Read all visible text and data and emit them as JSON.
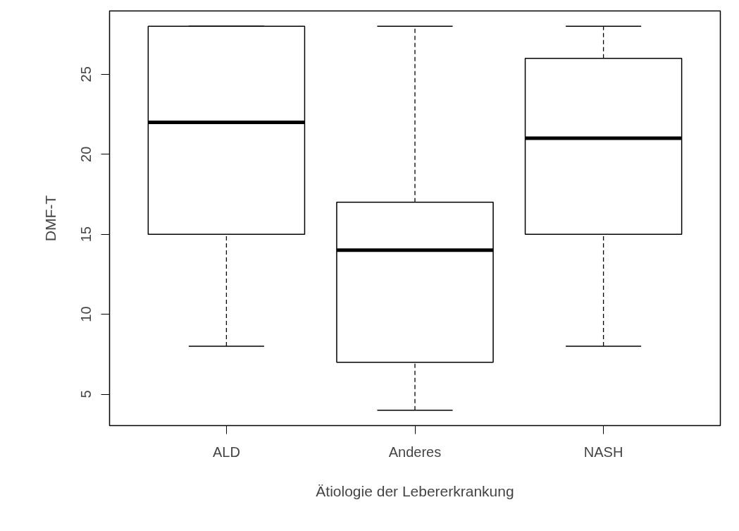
{
  "chart_data": {
    "type": "box",
    "categories": [
      "ALD",
      "Anderes",
      "NASH"
    ],
    "boxes": [
      {
        "low": 8,
        "q1": 15,
        "median": 22,
        "q3": 28,
        "high": 28
      },
      {
        "low": 4,
        "q1": 7,
        "median": 14,
        "q3": 17,
        "high": 28
      },
      {
        "low": 8,
        "q1": 15,
        "median": 21,
        "q3": 26,
        "high": 28
      }
    ],
    "xlabel": "Ätiologie der Lebererkrankung",
    "ylabel": "DMF-T",
    "ylim": [
      3.04,
      28.96
    ],
    "yticks": [
      5,
      10,
      15,
      20,
      25
    ],
    "grid": false
  }
}
